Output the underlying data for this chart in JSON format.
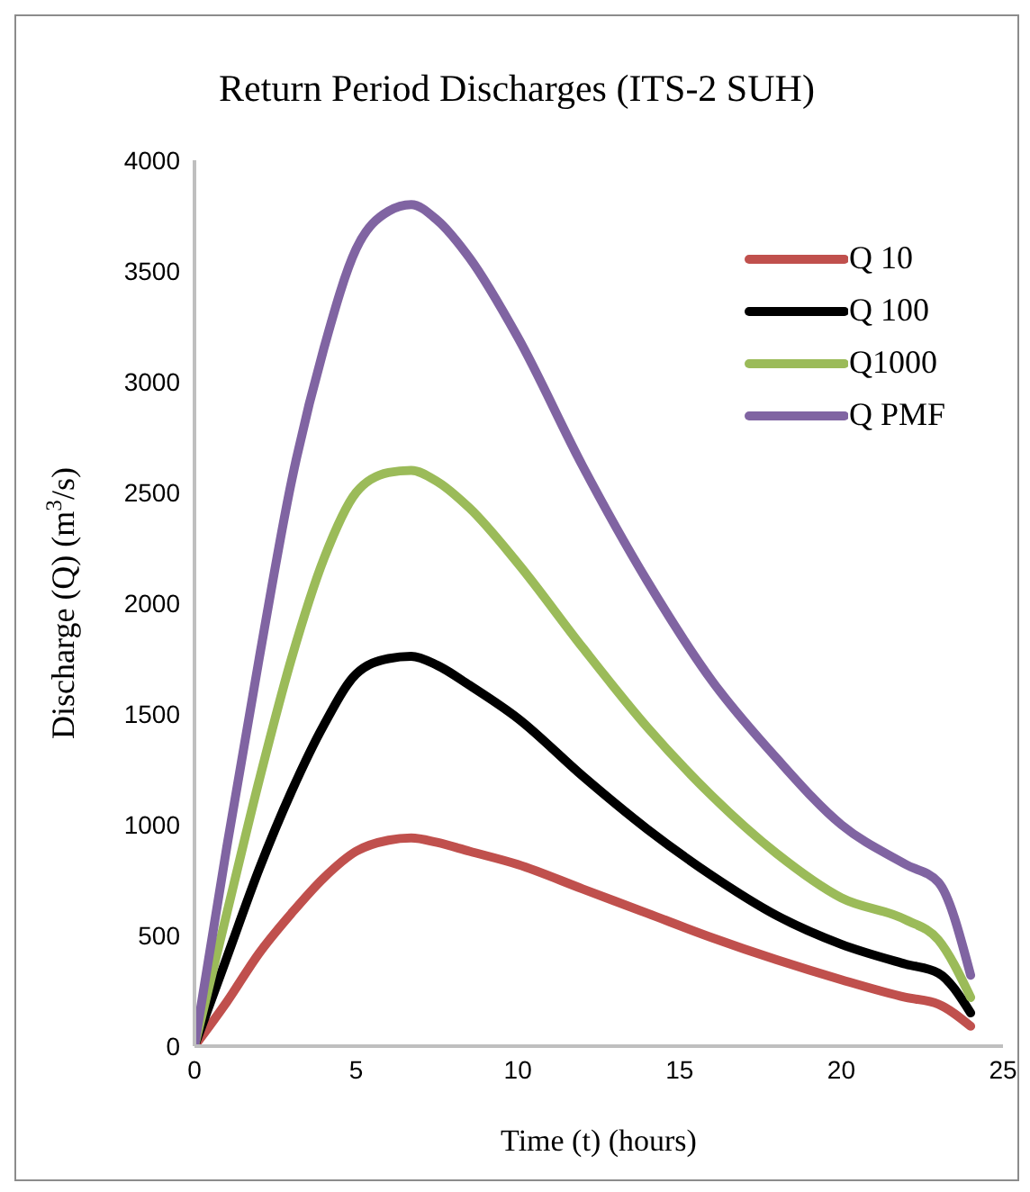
{
  "chart_data": {
    "type": "line",
    "title": "Return Period Discharges (ITS-2 SUH)",
    "xlabel": "Time (t) (hours)",
    "ylabel": "Discharge  (Q)  (m$^{3}$/s)",
    "x": [
      0,
      1,
      2,
      3,
      4,
      5,
      6,
      6.7,
      7.5,
      8.5,
      10,
      12,
      14,
      16,
      18,
      20,
      22,
      23,
      24
    ],
    "series": [
      {
        "name": "Q 10",
        "color": "#c0504d",
        "values": [
          0,
          200,
          420,
          600,
          760,
          880,
          930,
          940,
          920,
          880,
          820,
          710,
          600,
          490,
          390,
          300,
          220,
          190,
          90
        ]
      },
      {
        "name": "Q 100",
        "color": "#000000",
        "values": [
          0,
          400,
          800,
          1150,
          1450,
          1680,
          1750,
          1760,
          1720,
          1630,
          1480,
          1220,
          980,
          770,
          590,
          460,
          370,
          330,
          150
        ]
      },
      {
        "name": "Q1000",
        "color": "#9bbb59",
        "values": [
          0,
          600,
          1200,
          1750,
          2200,
          2500,
          2590,
          2600,
          2550,
          2430,
          2180,
          1800,
          1440,
          1130,
          870,
          670,
          570,
          480,
          220
        ]
      },
      {
        "name": "Q PMF",
        "color": "#8064a2",
        "values": [
          0,
          900,
          1750,
          2550,
          3150,
          3600,
          3770,
          3800,
          3730,
          3560,
          3200,
          2620,
          2100,
          1650,
          1300,
          1000,
          820,
          740,
          320
        ]
      }
    ],
    "xlim": [
      0,
      25
    ],
    "xticks": [
      0,
      5,
      10,
      15,
      20,
      25
    ],
    "ylim": [
      0,
      4000
    ],
    "yticks": [
      0,
      500,
      1000,
      1500,
      2000,
      2500,
      3000,
      3500,
      4000
    ],
    "grid": false,
    "legend": "top right",
    "marker": "none",
    "line_style": "solid"
  }
}
